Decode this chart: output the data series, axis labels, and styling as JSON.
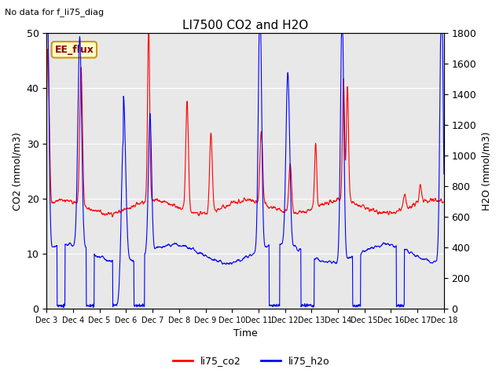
{
  "title": "LI7500 CO2 and H2O",
  "top_left_text": "No data for f_li75_diag",
  "xlabel": "Time",
  "ylabel_left": "CO2 (mmol/m3)",
  "ylabel_right": "H2O (mmol/m3)",
  "ylim_left": [
    0,
    50
  ],
  "ylim_right": [
    0,
    1800
  ],
  "x_tick_labels": [
    "Dec 3",
    "Dec 4",
    "Dec 5",
    "Dec 6",
    "Dec 7",
    "Dec 8",
    "Dec 9",
    "Dec 10",
    "Dec 11",
    "Dec 12",
    "Dec 13",
    "Dec 14",
    "Dec 15",
    "Dec 16",
    "Dec 17",
    "Dec 18"
  ],
  "legend_labels": [
    "li75_co2",
    "li75_h2o"
  ],
  "co2_color": "#ff0000",
  "h2o_color": "#0000ff",
  "bg_color": "#e8e8e8",
  "ee_flux_label": "EE_flux",
  "ee_flux_bg": "#ffffcc",
  "ee_flux_border": "#cc9900",
  "figsize": [
    6.4,
    4.8
  ],
  "dpi": 100
}
